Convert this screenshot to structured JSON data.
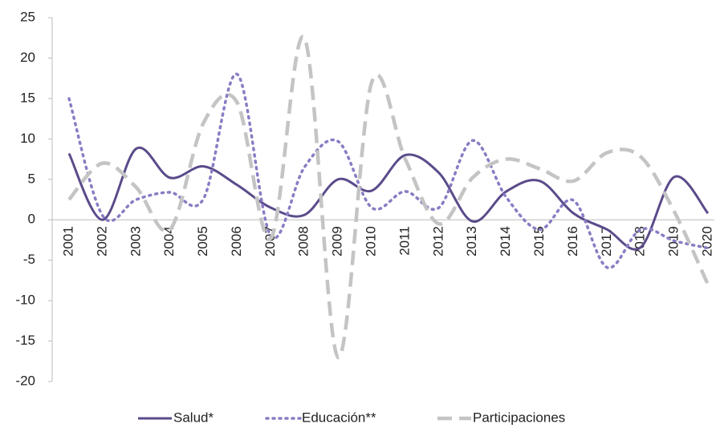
{
  "chart_data": {
    "type": "line",
    "categories": [
      "2001",
      "2002",
      "2003",
      "2004",
      "2005",
      "2006",
      "2007",
      "2008",
      "2009",
      "2010",
      "2011",
      "2012",
      "2013",
      "2014",
      "2015",
      "2016",
      "2017",
      "2018",
      "2019",
      "2020"
    ],
    "series": [
      {
        "name": "Salud*",
        "color": "#5b4b8a",
        "style": "solid",
        "values": [
          8.2,
          0,
          8.8,
          5.2,
          6.6,
          4.3,
          1.5,
          0.6,
          5.0,
          3.6,
          8.0,
          5.8,
          -0.2,
          3.5,
          4.8,
          0.8,
          -1.2,
          -3.4,
          5.3,
          0.8
        ]
      },
      {
        "name": "Educación**",
        "color": "#8a7cc4",
        "style": "dotted",
        "values": [
          15,
          0.5,
          2.5,
          3.4,
          2.6,
          18,
          -2,
          6.5,
          9.7,
          1.5,
          3.5,
          1.5,
          9.8,
          2.8,
          -1.2,
          2.4,
          -5.9,
          -1.2,
          -2.6,
          -3.5
        ]
      },
      {
        "name": "Participaciones",
        "color": "#c4c4c4",
        "style": "dashed",
        "values": [
          2.5,
          7,
          4,
          -1.2,
          12,
          14.5,
          -2.3,
          22.5,
          -17,
          17,
          7.5,
          -0.5,
          5.2,
          7.5,
          6.3,
          4.8,
          8.3,
          7.8,
          1,
          -8
        ]
      }
    ],
    "ylim": [
      -20,
      25
    ],
    "yticks": [
      -20,
      -15,
      -10,
      -5,
      0,
      5,
      10,
      15,
      20,
      25
    ],
    "legend": "bottom"
  }
}
